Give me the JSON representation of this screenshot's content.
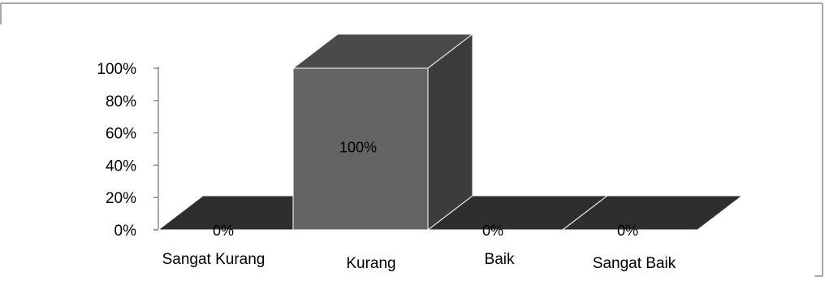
{
  "chart_data": {
    "type": "bar",
    "style": "3d-column",
    "categories": [
      "Sangat Kurang",
      "Kurang",
      "Baik",
      "Sangat Baik"
    ],
    "values": [
      0,
      100,
      0,
      0
    ],
    "data_labels": [
      "0%",
      "100%",
      "0%",
      "0%"
    ],
    "yticks": [
      "0%",
      "20%",
      "40%",
      "60%",
      "80%",
      "100%"
    ],
    "ylim": [
      0,
      100
    ],
    "title": "",
    "xlabel": "",
    "ylabel": "",
    "legend": false,
    "grid": false,
    "colors": {
      "bar_front": "#646464",
      "bar_top": "#4a4a4a",
      "bar_side": "#3c3c3c",
      "floor": "#2e2e2e",
      "frame": "#8c8c8c",
      "axis": "#8c8c8c"
    }
  }
}
